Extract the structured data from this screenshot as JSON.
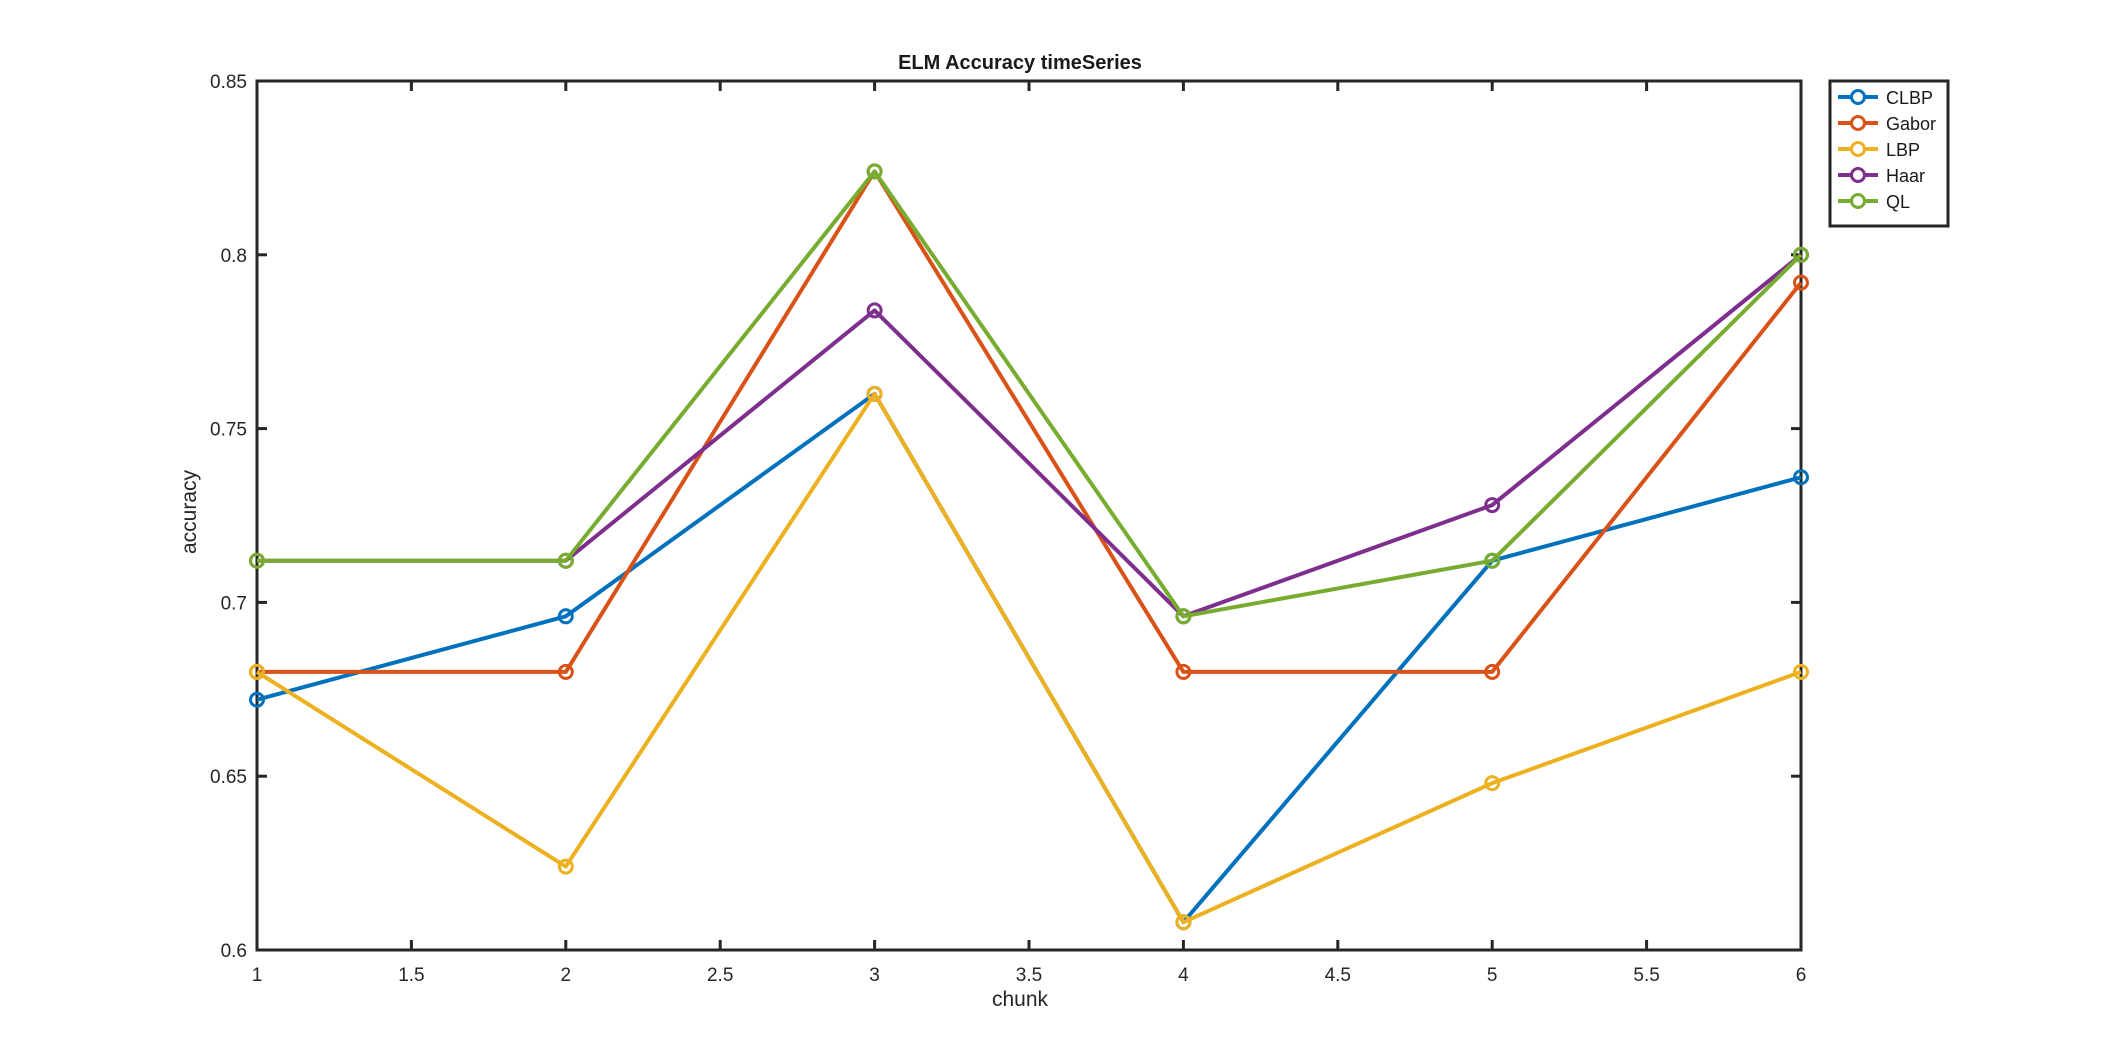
{
  "chart_data": {
    "type": "line",
    "title": "ELM Accuracy timeSeries",
    "xlabel": "chunk",
    "ylabel": "accuracy",
    "xlim": [
      1,
      6
    ],
    "ylim": [
      0.6,
      0.85
    ],
    "x_ticks": [
      1,
      1.5,
      2,
      2.5,
      3,
      3.5,
      4,
      4.5,
      5,
      5.5,
      6
    ],
    "x_tick_labels": [
      "1",
      "1.5",
      "2",
      "2.5",
      "3",
      "3.5",
      "4",
      "4.5",
      "5",
      "5.5",
      "6"
    ],
    "y_ticks": [
      0.6,
      0.65,
      0.7,
      0.75,
      0.8,
      0.85
    ],
    "y_tick_labels": [
      "0.6",
      "0.65",
      "0.7",
      "0.75",
      "0.8",
      "0.85"
    ],
    "grid": false,
    "legend_position": "outside-top-right",
    "x": [
      1,
      2,
      3,
      4,
      5,
      6
    ],
    "series": [
      {
        "name": "CLBP",
        "color": "#0072BD",
        "values": [
          0.672,
          0.696,
          0.76,
          0.608,
          0.712,
          0.736
        ]
      },
      {
        "name": "Gabor",
        "color": "#D95319",
        "values": [
          0.68,
          0.68,
          0.824,
          0.68,
          0.68,
          0.792
        ]
      },
      {
        "name": "LBP",
        "color": "#EDB120",
        "values": [
          0.68,
          0.624,
          0.76,
          0.608,
          0.648,
          0.68
        ]
      },
      {
        "name": "Haar",
        "color": "#7E2F8E",
        "values": [
          0.712,
          0.712,
          0.784,
          0.696,
          0.728,
          0.8
        ]
      },
      {
        "name": "QL",
        "color": "#77AC30",
        "values": [
          0.712,
          0.712,
          0.824,
          0.696,
          0.712,
          0.8
        ]
      }
    ]
  }
}
